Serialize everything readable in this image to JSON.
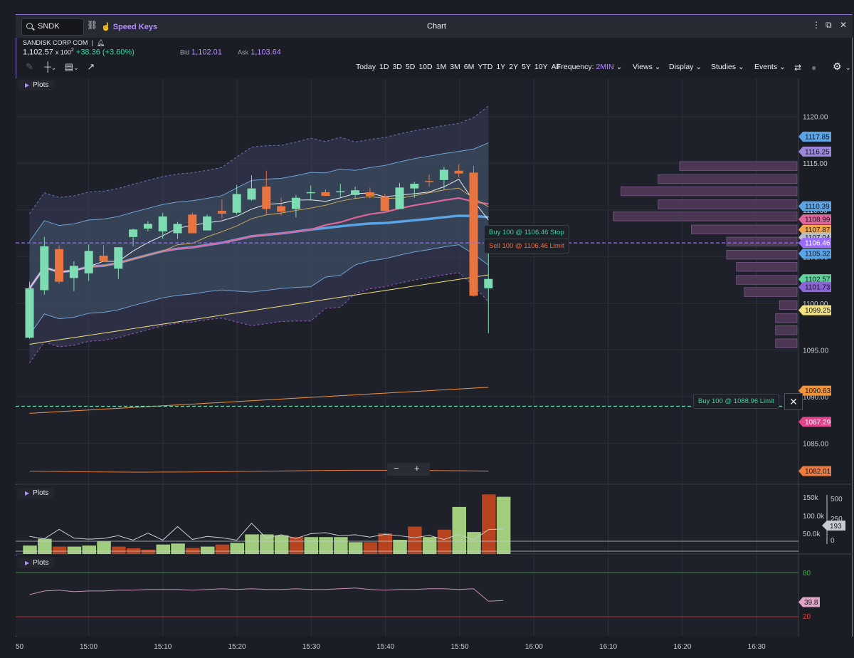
{
  "header": {
    "search_value": "SNDK",
    "speed_keys": "Speed Keys",
    "title": "Chart",
    "window_icons": [
      "more-icon",
      "popout-icon",
      "close-icon"
    ]
  },
  "quote": {
    "company": "SANDISK CORP COM",
    "last": "1,102.57",
    "size": "x 100",
    "size_sup": "2",
    "change": "+38.36 (+3.60%)",
    "bid_label": "Bid",
    "bid": "1,102.01",
    "ask_label": "Ask",
    "ask": "1,103.64"
  },
  "toolbar": {
    "ranges": [
      "Today",
      "1D",
      "3D",
      "5D",
      "10D",
      "1M",
      "3M",
      "6M",
      "YTD",
      "1Y",
      "2Y",
      "5Y",
      "10Y",
      "All"
    ],
    "frequency_label": "Frequency:",
    "frequency_value": "2MIN",
    "menus": [
      "Views",
      "Display",
      "Studies",
      "Events"
    ]
  },
  "panels": {
    "main_label": "Plots",
    "volume_label": "Plots",
    "rsi_label": "Plots"
  },
  "orders": {
    "buy_stop": "Buy 100 @ 1106.46 Stop",
    "sell_limit": "Sell 100 @ 1106.46 Limit",
    "buy_limit": "Buy 100 @ 1088.96 Limit",
    "color_buy": "#38d39f",
    "color_sell": "#f26a3d"
  },
  "chart_data": {
    "type": "candlestick",
    "x_times": [
      "15:00",
      "15:10",
      "15:20",
      "15:30",
      "15:40",
      "15:50",
      "16:00",
      "16:10",
      "16:20",
      "16:30"
    ],
    "x_edge_label": "50",
    "ylim": [
      1080.6,
      1124.1
    ],
    "y_ticks": [
      "1120.00",
      "1115.00",
      "1110.00",
      "1105.00",
      "1100.00",
      "1095.00",
      "1090.00",
      "1085.00"
    ],
    "candles": [
      {
        "o": 1096.3,
        "h": 1102.3,
        "l": 1096.2,
        "c": 1101.6
      },
      {
        "o": 1101.4,
        "h": 1107.1,
        "l": 1100.9,
        "c": 1106.1
      },
      {
        "o": 1105.8,
        "h": 1106.2,
        "l": 1102.1,
        "c": 1102.3
      },
      {
        "o": 1102.7,
        "h": 1104.5,
        "l": 1101.3,
        "c": 1104.0
      },
      {
        "o": 1103.2,
        "h": 1106.3,
        "l": 1102.4,
        "c": 1105.6
      },
      {
        "o": 1105.1,
        "h": 1106.2,
        "l": 1104.9,
        "c": 1104.5
      },
      {
        "o": 1103.7,
        "h": 1106.0,
        "l": 1102.6,
        "c": 1106.0
      },
      {
        "o": 1107.1,
        "h": 1108.0,
        "l": 1106.1,
        "c": 1107.9
      },
      {
        "o": 1108.0,
        "h": 1108.8,
        "l": 1107.7,
        "c": 1108.5
      },
      {
        "o": 1107.7,
        "h": 1109.7,
        "l": 1106.9,
        "c": 1109.3
      },
      {
        "o": 1107.5,
        "h": 1108.7,
        "l": 1106.9,
        "c": 1108.5
      },
      {
        "o": 1109.5,
        "h": 1109.7,
        "l": 1107.5,
        "c": 1107.5
      },
      {
        "o": 1107.8,
        "h": 1109.5,
        "l": 1107.8,
        "c": 1109.3
      },
      {
        "o": 1109.9,
        "h": 1111.1,
        "l": 1109.1,
        "c": 1109.6
      },
      {
        "o": 1109.7,
        "h": 1112.7,
        "l": 1109.5,
        "c": 1111.7
      },
      {
        "o": 1111.1,
        "h": 1113.7,
        "l": 1111.0,
        "c": 1112.3
      },
      {
        "o": 1112.5,
        "h": 1114.2,
        "l": 1109.5,
        "c": 1110.1
      },
      {
        "o": 1110.4,
        "h": 1111.3,
        "l": 1109.4,
        "c": 1109.8
      },
      {
        "o": 1110.1,
        "h": 1111.6,
        "l": 1109.2,
        "c": 1111.3
      },
      {
        "o": 1111.8,
        "h": 1112.6,
        "l": 1111.0,
        "c": 1111.9
      },
      {
        "o": 1111.9,
        "h": 1112.2,
        "l": 1111.6,
        "c": 1111.5
      },
      {
        "o": 1111.9,
        "h": 1112.8,
        "l": 1111.4,
        "c": 1112.0
      },
      {
        "o": 1111.6,
        "h": 1112.5,
        "l": 1111.2,
        "c": 1112.1
      },
      {
        "o": 1111.9,
        "h": 1112.4,
        "l": 1111.2,
        "c": 1111.5
      },
      {
        "o": 1111.4,
        "h": 1111.7,
        "l": 1110.2,
        "c": 1109.9
      },
      {
        "o": 1110.1,
        "h": 1112.9,
        "l": 1110.2,
        "c": 1112.4
      },
      {
        "o": 1112.3,
        "h": 1113.0,
        "l": 1111.3,
        "c": 1112.8
      },
      {
        "o": 1113.1,
        "h": 1113.8,
        "l": 1112.5,
        "c": 1113.0
      },
      {
        "o": 1113.2,
        "h": 1114.6,
        "l": 1112.2,
        "c": 1114.3
      },
      {
        "o": 1114.2,
        "h": 1114.9,
        "l": 1113.5,
        "c": 1113.9
      },
      {
        "o": 1114.0,
        "h": 1114.7,
        "l": 1100.7,
        "c": 1100.8
      },
      {
        "o": 1101.6,
        "h": 1107.0,
        "l": 1096.8,
        "c": 1102.6
      }
    ],
    "price_labels": [
      {
        "text": "1117.85",
        "value": 1117.85,
        "color": "#5aa4e6",
        "dark": true
      },
      {
        "text": "1116.25",
        "value": 1116.25,
        "color": "#9b86d9",
        "dark": true
      },
      {
        "text": "1110.39",
        "value": 1110.39,
        "color": "#5aa4e6",
        "dark": true
      },
      {
        "text": "1108.99",
        "value": 1108.99,
        "color": "#e0659b",
        "dark": true
      },
      {
        "text": "1107.87",
        "value": 1107.87,
        "color": "#f0a64b",
        "dark": true
      },
      {
        "text": "1107.04",
        "value": 1107.04,
        "color": "#b7bdc9",
        "dark": true
      },
      {
        "text": "1106.46",
        "value": 1106.46,
        "color": "#9b6bff",
        "dark": false
      },
      {
        "text": "1105.32",
        "value": 1105.32,
        "color": "#5aa4e6",
        "dark": true
      },
      {
        "text": "1102.57",
        "value": 1102.57,
        "color": "#5ed39a",
        "dark": true
      },
      {
        "text": "1101.73",
        "value": 1101.73,
        "color": "#8a63d6",
        "dark": true
      },
      {
        "text": "1099.25",
        "value": 1099.25,
        "color": "#f2e27a",
        "dark": true
      },
      {
        "text": "1090.63",
        "value": 1090.63,
        "color": "#f0943b",
        "dark": true
      },
      {
        "text": "1087.29",
        "value": 1087.29,
        "color": "#e0448a",
        "dark": false
      },
      {
        "text": "1082.01",
        "value": 1082.01,
        "color": "#f07a3b",
        "dark": true
      }
    ],
    "volume_profile": [
      {
        "price": 1114.7,
        "size": 0.6
      },
      {
        "price": 1113.3,
        "size": 0.71
      },
      {
        "price": 1112.0,
        "size": 0.9
      },
      {
        "price": 1110.6,
        "size": 0.71
      },
      {
        "price": 1109.3,
        "size": 0.94
      },
      {
        "price": 1107.9,
        "size": 0.54
      },
      {
        "price": 1106.6,
        "size": 0.36
      },
      {
        "price": 1105.2,
        "size": 0.36
      },
      {
        "price": 1103.9,
        "size": 0.31
      },
      {
        "price": 1102.5,
        "size": 0.31
      },
      {
        "price": 1101.2,
        "size": 0.27
      },
      {
        "price": 1099.8,
        "size": 0.09
      },
      {
        "price": 1098.4,
        "size": 0.11
      },
      {
        "price": 1097.1,
        "size": 0.11
      },
      {
        "price": 1095.7,
        "size": 0.11
      }
    ],
    "volume": {
      "ticks": [
        "150k",
        "100.0k",
        "50.0k"
      ],
      "right_ticks": [
        "500",
        "250",
        "0"
      ],
      "current_label": "193",
      "bars": [
        {
          "v": 25,
          "up": true
        },
        {
          "v": 45,
          "up": true
        },
        {
          "v": 22,
          "up": false
        },
        {
          "v": 22,
          "up": true
        },
        {
          "v": 25,
          "up": true
        },
        {
          "v": 37,
          "up": true
        },
        {
          "v": 22,
          "up": false
        },
        {
          "v": 17,
          "up": false
        },
        {
          "v": 13,
          "up": false
        },
        {
          "v": 28,
          "up": true
        },
        {
          "v": 31,
          "up": true
        },
        {
          "v": 18,
          "up": false
        },
        {
          "v": 22,
          "up": true
        },
        {
          "v": 28,
          "up": false
        },
        {
          "v": 33,
          "up": true
        },
        {
          "v": 58,
          "up": true
        },
        {
          "v": 58,
          "up": true
        },
        {
          "v": 55,
          "up": true
        },
        {
          "v": 50,
          "up": false
        },
        {
          "v": 50,
          "up": true
        },
        {
          "v": 50,
          "up": true
        },
        {
          "v": 50,
          "up": true
        },
        {
          "v": 35,
          "up": true
        },
        {
          "v": 35,
          "up": false
        },
        {
          "v": 61,
          "up": false
        },
        {
          "v": 42,
          "up": true
        },
        {
          "v": 81,
          "up": false
        },
        {
          "v": 50,
          "up": true
        },
        {
          "v": 72,
          "up": false
        },
        {
          "v": 139,
          "up": true
        },
        {
          "v": 65,
          "up": true
        },
        {
          "v": 176,
          "up": false
        },
        {
          "v": 169,
          "up": true
        }
      ],
      "line": [
        52,
        45,
        73,
        47,
        44,
        46,
        54,
        41,
        62,
        41,
        81,
        43,
        52,
        48,
        41,
        91,
        47,
        57,
        46,
        60,
        63,
        54,
        57,
        50,
        58,
        54,
        48,
        55,
        43,
        58,
        42,
        72,
        74
      ]
    },
    "rsi": {
      "levels": [
        "80",
        "20"
      ],
      "current_label": "39.8",
      "values": [
        50,
        55,
        56,
        54,
        55,
        55,
        56,
        56,
        57,
        57,
        57,
        56,
        57,
        58,
        57,
        58,
        57,
        57,
        58,
        57,
        57,
        58,
        59,
        57,
        56,
        57,
        57,
        58,
        58,
        57,
        58,
        41,
        42
      ]
    }
  }
}
